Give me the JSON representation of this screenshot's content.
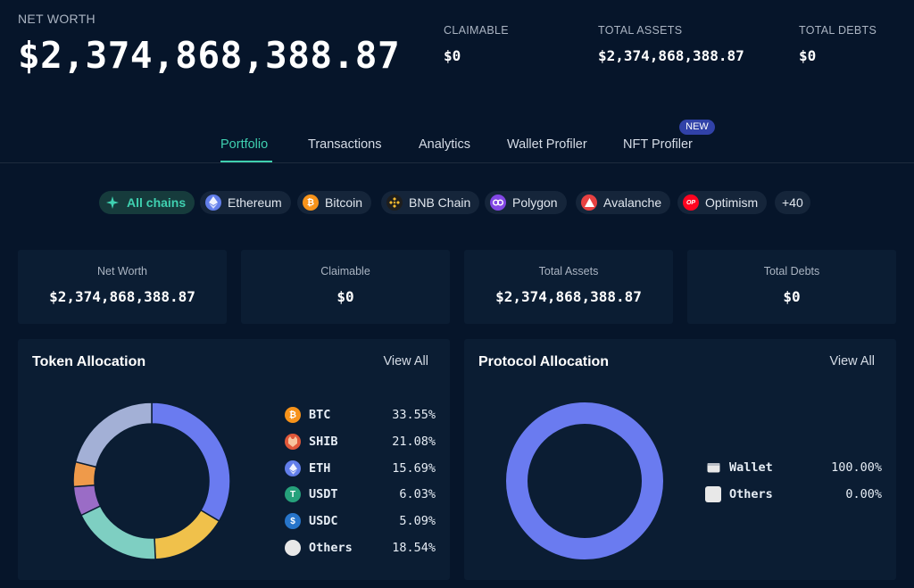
{
  "summary": {
    "net_worth_label": "NET WORTH",
    "net_worth_value": "$2,374,868,388.87",
    "claimable_label": "CLAIMABLE",
    "claimable_value": "$0",
    "total_assets_label": "TOTAL ASSETS",
    "total_assets_value": "$2,374,868,388.87",
    "total_debts_label": "TOTAL DEBTS",
    "total_debts_value": "$0"
  },
  "tabs": [
    {
      "label": "Portfolio",
      "active": true
    },
    {
      "label": "Transactions",
      "active": false
    },
    {
      "label": "Analytics",
      "active": false
    },
    {
      "label": "Wallet Profiler",
      "active": false
    },
    {
      "label": "NFT Profiler",
      "active": false
    }
  ],
  "new_badge": "NEW",
  "chains": [
    {
      "label": "All chains",
      "icon": "all-chains-icon",
      "color": "#3fd0b0",
      "active": true
    },
    {
      "label": "Ethereum",
      "icon": "ethereum-icon",
      "color": "#627eea",
      "active": false
    },
    {
      "label": "Bitcoin",
      "icon": "bitcoin-icon",
      "color": "#f7931a",
      "active": false
    },
    {
      "label": "BNB Chain",
      "icon": "bnb-icon",
      "color": "#f3ba2f",
      "active": false
    },
    {
      "label": "Polygon",
      "icon": "polygon-icon",
      "color": "#8247e5",
      "active": false
    },
    {
      "label": "Avalanche",
      "icon": "avalanche-icon",
      "color": "#e84142",
      "active": false
    },
    {
      "label": "Optimism",
      "icon": "optimism-icon",
      "color": "#ff0420",
      "active": false
    },
    {
      "label": "+40",
      "icon": "",
      "color": "",
      "active": false
    }
  ],
  "cards": [
    {
      "label": "Net Worth",
      "value": "$2,374,868,388.87"
    },
    {
      "label": "Claimable",
      "value": "$0"
    },
    {
      "label": "Total Assets",
      "value": "$2,374,868,388.87"
    },
    {
      "label": "Total Debts",
      "value": "$0"
    }
  ],
  "token_panel": {
    "title": "Token Allocation",
    "view_all": "View All",
    "tokens": [
      {
        "name": "BTC",
        "pct": "33.55%",
        "icon": "bitcoin-icon",
        "color": "#f7931a"
      },
      {
        "name": "SHIB",
        "pct": "21.08%",
        "icon": "shiba-icon",
        "color": "#e0583a"
      },
      {
        "name": "ETH",
        "pct": "15.69%",
        "icon": "ethereum-icon",
        "color": "#627eea"
      },
      {
        "name": "USDT",
        "pct": "6.03%",
        "icon": "tether-icon",
        "color": "#26a17b"
      },
      {
        "name": "USDC",
        "pct": "5.09%",
        "icon": "usdc-icon",
        "color": "#2775ca"
      },
      {
        "name": "Others",
        "pct": "18.54%",
        "icon": "others-icon",
        "color": "#e8e8e8"
      }
    ]
  },
  "protocol_panel": {
    "title": "Protocol Allocation",
    "view_all": "View All",
    "protocols": [
      {
        "name": "Wallet",
        "pct": "100.00%",
        "icon": "wallet-icon"
      },
      {
        "name": "Others",
        "pct": "0.00%",
        "icon": "others-icon"
      }
    ]
  },
  "chart_data": [
    {
      "type": "pie",
      "title": "Token Allocation",
      "donut": true,
      "categories": [
        "BTC",
        "SHIB",
        "ETH",
        "USDT",
        "USDC",
        "Others"
      ],
      "values": [
        33.55,
        21.08,
        15.69,
        6.03,
        5.09,
        18.54
      ],
      "colors": [
        "#6a7bf0",
        "#a3b0d6",
        "#f0c14b",
        "#9a6cc6",
        "#ef9a4a",
        "#7ecfc2"
      ],
      "segment_order": [
        "BTC",
        "ETH",
        "Others",
        "USDT",
        "USDC",
        "SHIB"
      ]
    },
    {
      "type": "pie",
      "title": "Protocol Allocation",
      "donut": true,
      "categories": [
        "Wallet",
        "Others"
      ],
      "values": [
        100.0,
        0.0
      ],
      "colors": [
        "#6a7bf0",
        "#e8e8e8"
      ]
    }
  ]
}
